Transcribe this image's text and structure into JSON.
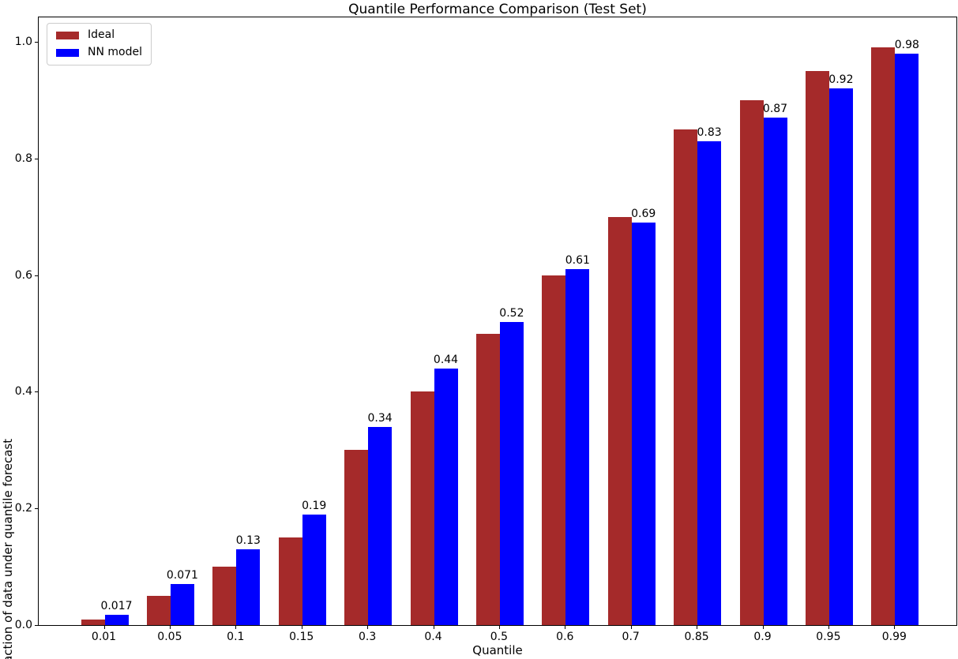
{
  "chart_data": {
    "type": "bar",
    "title": "Quantile Performance Comparison (Test Set)",
    "xlabel": "Quantile",
    "ylabel": "Fraction of data under quantile forecast",
    "categories": [
      "0.01",
      "0.05",
      "0.1",
      "0.15",
      "0.3",
      "0.4",
      "0.5",
      "0.6",
      "0.7",
      "0.85",
      "0.9",
      "0.95",
      "0.99"
    ],
    "series": [
      {
        "name": "Ideal",
        "color": "#A52A2A",
        "values": [
          0.01,
          0.05,
          0.1,
          0.15,
          0.3,
          0.4,
          0.5,
          0.6,
          0.7,
          0.85,
          0.9,
          0.95,
          0.99
        ]
      },
      {
        "name": "NN model",
        "color": "#0000FF",
        "values": [
          0.017,
          0.071,
          0.13,
          0.19,
          0.34,
          0.44,
          0.52,
          0.61,
          0.69,
          0.83,
          0.87,
          0.92,
          0.98
        ]
      }
    ],
    "bar_labels": [
      "0.017",
      "0.071",
      "0.13",
      "0.19",
      "0.34",
      "0.44",
      "0.52",
      "0.61",
      "0.69",
      "0.83",
      "0.87",
      "0.92",
      "0.98"
    ],
    "y_ticks": [
      "0.0",
      "0.2",
      "0.4",
      "0.6",
      "0.8",
      "1.0"
    ],
    "y_tick_values": [
      0.0,
      0.2,
      0.4,
      0.6,
      0.8,
      1.0
    ],
    "ylim": [
      0,
      1.042
    ],
    "grid": false,
    "legend_position": "upper left",
    "spine_color": "#000000",
    "background_color": "#ffffff",
    "label_color": "#000000"
  }
}
